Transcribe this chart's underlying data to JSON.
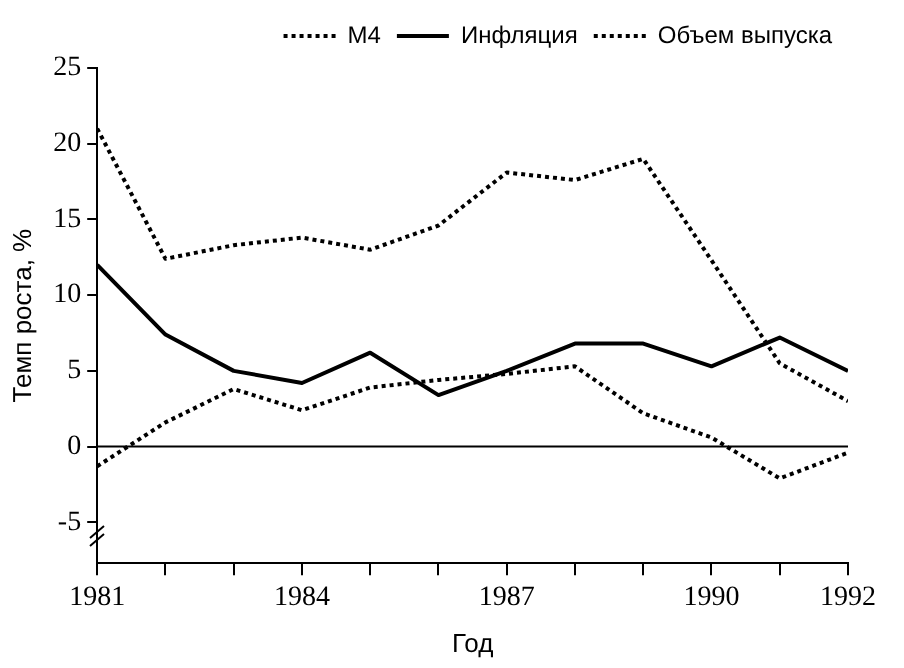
{
  "chart_data": {
    "type": "line",
    "xlabel": "Год",
    "ylabel": "Темп роста, %",
    "x": [
      1981,
      1982,
      1983,
      1984,
      1985,
      1986,
      1987,
      1988,
      1989,
      1990,
      1991,
      1992
    ],
    "series": [
      {
        "name": "M4",
        "color": "#000000",
        "line_style": "dotted",
        "values": [
          21.0,
          12.4,
          13.3,
          13.8,
          13.0,
          14.6,
          18.1,
          17.6,
          19.0,
          12.3,
          5.5,
          3.0
        ]
      },
      {
        "name": "Инфляция",
        "color": "#000000",
        "line_style": "solid",
        "values": [
          12.0,
          7.4,
          5.0,
          4.2,
          6.2,
          3.4,
          5.0,
          6.8,
          6.8,
          5.3,
          7.2,
          5.0
        ]
      },
      {
        "name": "Объем выпуска",
        "color": "#000000",
        "line_style": "dotted",
        "values": [
          -1.3,
          1.6,
          3.8,
          2.4,
          3.9,
          4.4,
          4.8,
          5.3,
          2.2,
          0.6,
          -2.1,
          -0.4
        ]
      }
    ],
    "xlim": [
      1981,
      1992
    ],
    "xticks": [
      1981,
      {
        "value": 1982,
        "label": null
      },
      {
        "value": 1983,
        "label": null
      },
      1984,
      {
        "value": 1985,
        "label": null
      },
      {
        "value": 1986,
        "label": null
      },
      1987,
      {
        "value": 1988,
        "label": null
      },
      {
        "value": 1989,
        "label": null
      },
      1990,
      {
        "value": 1991,
        "label": null
      },
      1992
    ],
    "ylim": [
      -7.7,
      25
    ],
    "yticks": [
      -5,
      0,
      5,
      10,
      15,
      20,
      25
    ],
    "ref_lines": [
      {
        "axis": "y",
        "value": 0,
        "color": "#000000",
        "line_style": "solid"
      }
    ],
    "marker": "none",
    "grid": false,
    "legend": "top right"
  }
}
